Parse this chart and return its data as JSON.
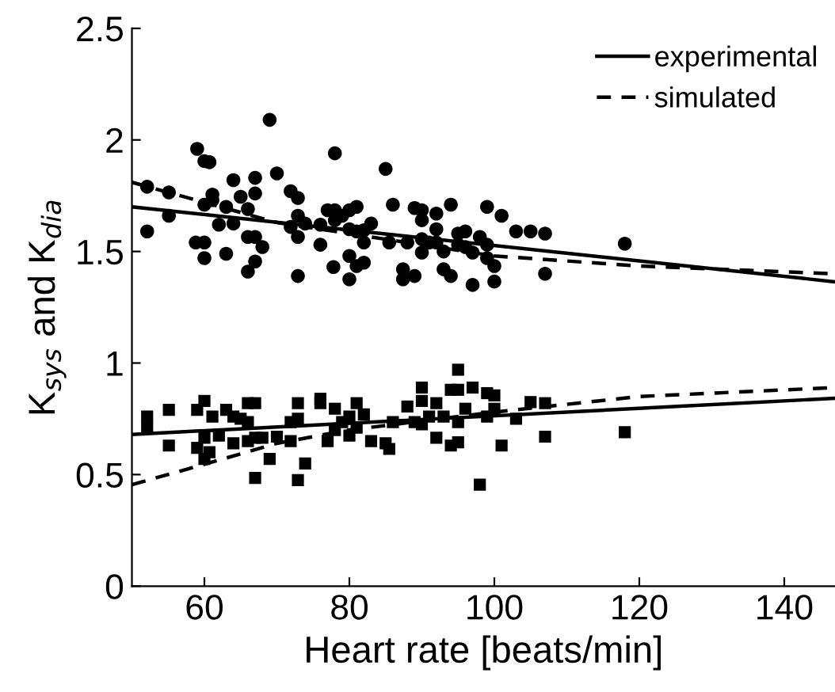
{
  "chart_data": {
    "type": "scatter",
    "xlabel": "Heart rate [beats/min]",
    "ylabel": "K$_{sys}$ and K$_{dia}$",
    "xlim": [
      50,
      147
    ],
    "xticks": [
      60,
      80,
      100,
      120,
      140
    ],
    "ylim": [
      0,
      2.5
    ],
    "yticks": [
      0,
      0.5,
      1,
      1.5,
      2,
      2.5
    ],
    "grid": false,
    "legend": "top right",
    "series": [
      {
        "marker": "circle",
        "color": "#000000",
        "x": [
          52.1,
          52.1,
          55.1,
          55.1,
          59,
          58.8,
          60,
          60.7,
          60,
          60,
          60,
          61.1,
          61.1,
          62,
          63,
          63,
          64,
          64,
          65,
          66,
          66,
          66,
          67,
          67,
          67,
          67,
          68,
          69,
          70,
          71.9,
          71.9,
          72.9,
          72.9,
          72.9,
          72.9,
          73.9,
          76,
          76,
          77,
          77.8,
          78,
          78,
          78,
          79,
          80,
          80,
          80,
          80,
          81,
          81,
          81,
          82,
          82,
          82,
          83,
          85,
          86,
          85.5,
          87.4,
          87.4,
          88,
          89,
          89,
          90,
          90,
          90,
          90,
          91,
          92,
          92,
          92,
          93,
          93,
          94,
          94,
          95,
          95,
          96,
          96,
          97,
          97,
          98,
          99,
          99,
          99,
          100,
          100,
          101,
          103,
          105,
          107,
          107,
          118
        ],
        "values": [
          1.79,
          1.59,
          1.765,
          1.66,
          1.96,
          1.54,
          1.905,
          1.9,
          1.54,
          1.47,
          1.71,
          1.755,
          1.73,
          1.62,
          1.7,
          1.49,
          1.82,
          1.625,
          1.745,
          1.69,
          1.565,
          1.41,
          1.83,
          1.76,
          1.565,
          1.455,
          1.52,
          2.09,
          1.85,
          1.77,
          1.61,
          1.74,
          1.66,
          1.565,
          1.39,
          1.625,
          1.62,
          1.53,
          1.685,
          1.43,
          1.94,
          1.685,
          1.64,
          1.66,
          1.685,
          1.6,
          1.48,
          1.375,
          1.7,
          1.59,
          1.435,
          1.595,
          1.54,
          1.45,
          1.625,
          1.87,
          1.71,
          1.54,
          1.42,
          1.375,
          1.54,
          1.695,
          1.39,
          1.685,
          1.64,
          1.555,
          1.495,
          1.54,
          1.67,
          1.6,
          1.54,
          1.5,
          1.42,
          1.71,
          1.39,
          1.58,
          1.53,
          1.59,
          1.52,
          1.35,
          1.495,
          1.565,
          1.7,
          1.53,
          1.47,
          1.435,
          1.365,
          1.66,
          1.59,
          1.59,
          1.58,
          1.4,
          1.535
        ]
      },
      {
        "marker": "square",
        "color": "#000000",
        "x": [
          52.1,
          52.1,
          55.1,
          55.1,
          59,
          59,
          60,
          60,
          60,
          60.7,
          61.1,
          62,
          63,
          64,
          64,
          65,
          66,
          66,
          66,
          67,
          67,
          67,
          68,
          69,
          70,
          71.9,
          71.9,
          72.9,
          72.9,
          72.9,
          73.9,
          76,
          76,
          77,
          78,
          78,
          79,
          80,
          80,
          81,
          81,
          82,
          83,
          85,
          85.5,
          86,
          88,
          89,
          90,
          90,
          90,
          91,
          92,
          92,
          93,
          94,
          94,
          95,
          95,
          95,
          95,
          96,
          97,
          98,
          99,
          99,
          100,
          100,
          101,
          103,
          105,
          107,
          107,
          118
        ],
        "values": [
          0.76,
          0.71,
          0.79,
          0.63,
          0.79,
          0.62,
          0.83,
          0.665,
          0.57,
          0.6,
          0.76,
          0.675,
          0.79,
          0.76,
          0.64,
          0.75,
          0.82,
          0.735,
          0.65,
          0.82,
          0.665,
          0.485,
          0.665,
          0.57,
          0.67,
          0.735,
          0.65,
          0.82,
          0.75,
          0.475,
          0.55,
          0.84,
          0.82,
          0.65,
          0.795,
          0.7,
          0.735,
          0.76,
          0.675,
          0.82,
          0.71,
          0.77,
          0.65,
          0.64,
          0.615,
          0.735,
          0.805,
          0.735,
          0.89,
          0.83,
          0.725,
          0.76,
          0.82,
          0.665,
          0.76,
          0.88,
          0.63,
          0.97,
          0.88,
          0.735,
          0.645,
          0.795,
          0.89,
          0.455,
          0.865,
          0.76,
          0.855,
          0.795,
          0.63,
          0.75,
          0.825,
          0.82,
          0.67,
          0.69
        ]
      },
      {
        "type": "line",
        "name": "experimental",
        "line_style": "solid",
        "color": "#000000",
        "x": [
          50,
          147
        ],
        "values": [
          1.7,
          1.364
        ]
      },
      {
        "type": "line",
        "name": "simulated",
        "line_style": "dashed",
        "color": "#000000",
        "x": [
          50,
          60,
          70,
          80,
          100,
          120,
          147
        ],
        "values": [
          1.81,
          1.72,
          1.63,
          1.58,
          1.48,
          1.435,
          1.4
        ]
      },
      {
        "type": "line",
        "line_style": "solid",
        "color": "#000000",
        "x": [
          50,
          147
        ],
        "values": [
          0.68,
          0.842
        ]
      },
      {
        "type": "line",
        "line_style": "dashed",
        "color": "#000000",
        "x": [
          50,
          60,
          70,
          80,
          100,
          120,
          147
        ],
        "values": [
          0.455,
          0.546,
          0.64,
          0.7,
          0.78,
          0.85,
          0.89
        ]
      }
    ]
  }
}
